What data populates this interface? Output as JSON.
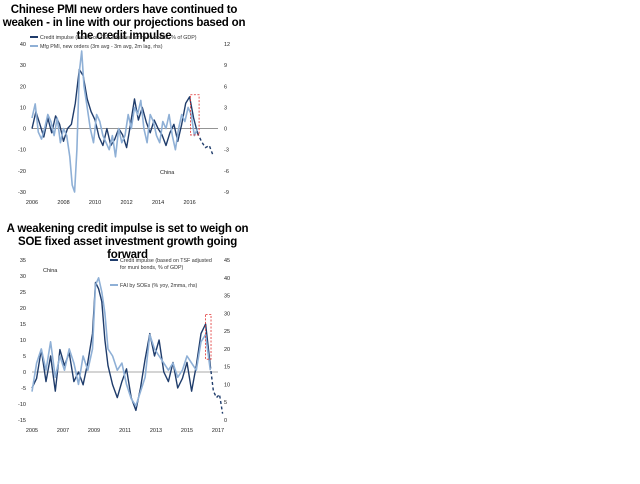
{
  "page": {
    "title1": "Chinese PMI new orders have continued to weaken - in line with our projections based on the credit impulse",
    "title2": "A weakening credit impulse is set to weigh on SOE fixed asset investment growth going forward"
  },
  "colors": {
    "dark": "#1f3c6b",
    "light": "#8fb0d6",
    "box": "#e03030",
    "axis": "#555555"
  },
  "chart_data": [
    {
      "type": "line",
      "title": "Chinese PMI new orders have continued to weaken - in line with our projections based on the credit impulse",
      "xlim": [
        2006,
        2017.8
      ],
      "ylim": [
        -30,
        40
      ],
      "y2lim": [
        -9,
        12
      ],
      "xticks": [
        2006,
        2008,
        2010,
        2012,
        2014,
        2016
      ],
      "yticks": [
        -30,
        -20,
        -10,
        0,
        10,
        20,
        30,
        40
      ],
      "y2ticks": [
        -9,
        -6,
        -3,
        0,
        3,
        6,
        9,
        12
      ],
      "annotation": "China",
      "series": [
        {
          "name": "Credit impulse (based on TSF adjusted for muni bonds, % of GDP)",
          "axis": "left",
          "color": "#1f3c6b",
          "x": [
            2006.0,
            2006.25,
            2006.5,
            2006.75,
            2007.0,
            2007.25,
            2007.5,
            2007.75,
            2008.0,
            2008.25,
            2008.5,
            2008.75,
            2009.0,
            2009.25,
            2009.5,
            2009.75,
            2010.0,
            2010.25,
            2010.5,
            2010.75,
            2011.0,
            2011.25,
            2011.5,
            2011.75,
            2012.0,
            2012.25,
            2012.5,
            2012.75,
            2013.0,
            2013.25,
            2013.5,
            2013.75,
            2014.0,
            2014.25,
            2014.5,
            2014.75,
            2015.0,
            2015.25,
            2015.5,
            2015.75,
            2016.0,
            2016.25,
            2016.5
          ],
          "y": [
            0,
            8,
            2,
            -4,
            5,
            -2,
            6,
            2,
            -6,
            0,
            2,
            12,
            28,
            25,
            14,
            8,
            4,
            -4,
            -8,
            0,
            -8,
            -5,
            0,
            -3,
            -9,
            2,
            14,
            4,
            10,
            3,
            -2,
            4,
            0,
            -3,
            -8,
            -2,
            2,
            -6,
            2,
            12,
            15,
            5,
            -2
          ]
        },
        {
          "name": "Credit impulse projection",
          "axis": "left",
          "color": "#1f3c6b",
          "dashed": true,
          "x": [
            2016.5,
            2016.75,
            2017.0,
            2017.25,
            2017.5
          ],
          "y": [
            -2,
            -6,
            -9,
            -8,
            -13
          ]
        },
        {
          "name": "Mfg PMI, new orders (3m avg - 3m avg, 2m lag, rhs)",
          "axis": "right",
          "color": "#8fb0d6",
          "x": [
            2006.0,
            2006.2,
            2006.4,
            2006.6,
            2006.8,
            2007.0,
            2007.2,
            2007.4,
            2007.6,
            2007.8,
            2008.0,
            2008.2,
            2008.4,
            2008.55,
            2008.7,
            2008.85,
            2009.0,
            2009.15,
            2009.3,
            2009.5,
            2009.7,
            2009.9,
            2010.1,
            2010.3,
            2010.5,
            2010.7,
            2010.9,
            2011.1,
            2011.3,
            2011.5,
            2011.7,
            2011.9,
            2012.1,
            2012.3,
            2012.5,
            2012.7,
            2012.9,
            2013.1,
            2013.3,
            2013.5,
            2013.7,
            2013.9,
            2014.1,
            2014.3,
            2014.5,
            2014.7,
            2014.9,
            2015.1,
            2015.3,
            2015.5,
            2015.7,
            2015.9,
            2016.1,
            2016.3,
            2016.5
          ],
          "y": [
            1.5,
            3.5,
            -0.5,
            -1.5,
            0,
            2,
            1,
            -1,
            1.5,
            -2,
            0,
            -1,
            -4,
            -8,
            -9,
            -3,
            8,
            11,
            6,
            3,
            0,
            -2,
            2,
            1,
            -1,
            -2,
            -3,
            -1,
            -4,
            0,
            -2,
            -1,
            2,
            0,
            3,
            2,
            4,
            0,
            -2,
            2,
            1,
            -1,
            -2,
            1,
            0,
            2,
            -1,
            -3,
            0,
            2,
            1,
            3,
            2,
            -1,
            0
          ]
        }
      ],
      "box": {
        "x": [
          2016.05,
          2016.6
        ],
        "y": [
          -3,
          16
        ]
      }
    },
    {
      "type": "line",
      "title": "A weakening credit impulse is set to weigh on SOE fixed asset investment growth going forward",
      "xlim": [
        2005,
        2017
      ],
      "ylim": [
        -15,
        35
      ],
      "y2lim": [
        0,
        45
      ],
      "xticks": [
        2005,
        2007,
        2009,
        2011,
        2013,
        2015,
        2017
      ],
      "yticks": [
        -15,
        -10,
        -5,
        0,
        5,
        10,
        15,
        20,
        25,
        30,
        35
      ],
      "y2ticks": [
        0,
        5,
        10,
        15,
        20,
        25,
        30,
        35,
        40,
        45
      ],
      "annotation": "China",
      "series": [
        {
          "name": "Credit impulse (based on TSF adjusted for muni bonds, % of GDP)",
          "axis": "left",
          "color": "#1f3c6b",
          "x": [
            2005.0,
            2005.3,
            2005.6,
            2005.9,
            2006.2,
            2006.5,
            2006.8,
            2007.1,
            2007.4,
            2007.7,
            2008.0,
            2008.3,
            2008.6,
            2008.9,
            2009.1,
            2009.3,
            2009.5,
            2009.7,
            2009.9,
            2010.2,
            2010.5,
            2010.8,
            2011.1,
            2011.4,
            2011.7,
            2012.0,
            2012.3,
            2012.6,
            2012.9,
            2013.2,
            2013.5,
            2013.8,
            2014.1,
            2014.4,
            2014.7,
            2015.0,
            2015.3,
            2015.6,
            2015.9,
            2016.2,
            2016.5
          ],
          "y": [
            -5,
            -2,
            7,
            -3,
            5,
            -6,
            7,
            2,
            6,
            -3,
            0,
            -4,
            3,
            12,
            28,
            26,
            22,
            10,
            2,
            -4,
            -8,
            -3,
            1,
            -8,
            -12,
            -5,
            4,
            12,
            5,
            10,
            0,
            -3,
            3,
            -5,
            -2,
            3,
            -6,
            2,
            12,
            15,
            2
          ]
        },
        {
          "name": "Credit impulse projection",
          "axis": "left",
          "color": "#1f3c6b",
          "dashed": true,
          "x": [
            2016.5,
            2016.7,
            2016.9,
            2017.1,
            2017.3
          ],
          "y": [
            2,
            -6,
            -8,
            -7,
            -13
          ]
        },
        {
          "name": "FAI by SOEs (% yoy, 2mma, rhs)",
          "axis": "right",
          "color": "#8fb0d6",
          "x": [
            2005.0,
            2005.3,
            2005.6,
            2005.9,
            2006.2,
            2006.5,
            2006.8,
            2007.1,
            2007.4,
            2007.7,
            2008.0,
            2008.3,
            2008.6,
            2008.9,
            2009.1,
            2009.3,
            2009.5,
            2009.7,
            2009.9,
            2010.2,
            2010.5,
            2010.8,
            2011.1,
            2011.4,
            2011.7,
            2012.0,
            2012.3,
            2012.6,
            2012.9,
            2013.2,
            2013.5,
            2013.8,
            2014.1,
            2014.4,
            2014.7,
            2015.0,
            2015.3,
            2015.6,
            2015.9,
            2016.2,
            2016.5
          ],
          "y": [
            8,
            16,
            20,
            14,
            22,
            12,
            18,
            14,
            20,
            16,
            10,
            18,
            14,
            20,
            38,
            40,
            36,
            30,
            20,
            18,
            14,
            16,
            10,
            6,
            4,
            8,
            12,
            24,
            20,
            18,
            16,
            14,
            16,
            12,
            14,
            18,
            16,
            14,
            22,
            24,
            14
          ]
        }
      ],
      "box": {
        "x": [
          2016.2,
          2016.55
        ],
        "y": [
          4,
          18
        ]
      }
    }
  ]
}
